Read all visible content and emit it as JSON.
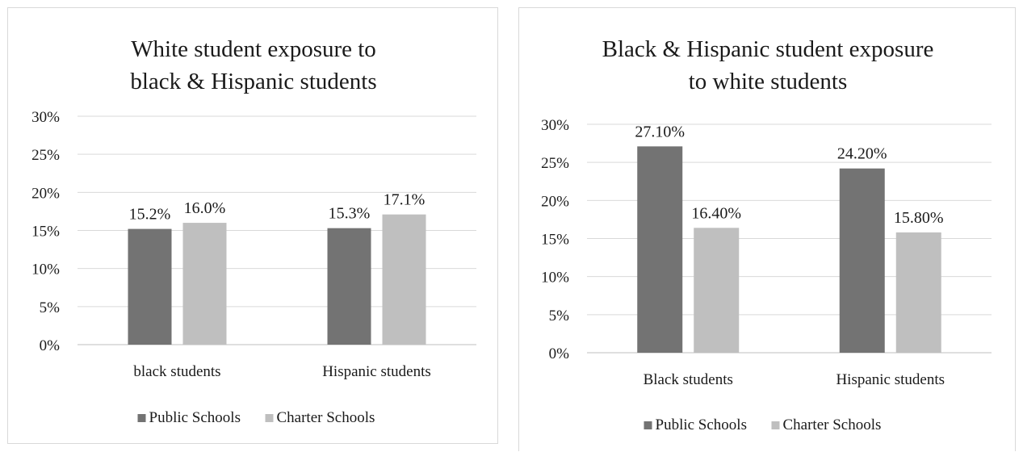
{
  "colors": {
    "public": "#737373",
    "charter": "#bfbfbf"
  },
  "chart_data": [
    {
      "type": "bar",
      "title": [
        "White student exposure to",
        "black & Hispanic students"
      ],
      "categories": [
        "black students",
        "Hispanic students"
      ],
      "series": [
        {
          "name": "Public Schools",
          "values": [
            15.2,
            15.3
          ],
          "labels": [
            "15.2%",
            "15.3%"
          ]
        },
        {
          "name": "Charter Schools",
          "values": [
            16.0,
            17.1
          ],
          "labels": [
            "16.0%",
            "17.1%"
          ]
        }
      ],
      "ylim": [
        0,
        30
      ],
      "yticks": [
        "0%",
        "5%",
        "10%",
        "15%",
        "20%",
        "25%",
        "30%"
      ],
      "grid": true,
      "legend": "bottom"
    },
    {
      "type": "bar",
      "title": [
        "Black & Hispanic student exposure",
        "to white students"
      ],
      "categories": [
        "Black students",
        "Hispanic students"
      ],
      "series": [
        {
          "name": "Public Schools",
          "values": [
            27.1,
            24.2
          ],
          "labels": [
            "27.10%",
            "24.20%"
          ]
        },
        {
          "name": "Charter Schools",
          "values": [
            16.4,
            15.8
          ],
          "labels": [
            "16.40%",
            "15.80%"
          ]
        }
      ],
      "ylim": [
        0,
        30
      ],
      "yticks": [
        "0%",
        "5%",
        "10%",
        "15%",
        "20%",
        "25%",
        "30%"
      ],
      "grid": true,
      "legend": "bottom"
    }
  ]
}
